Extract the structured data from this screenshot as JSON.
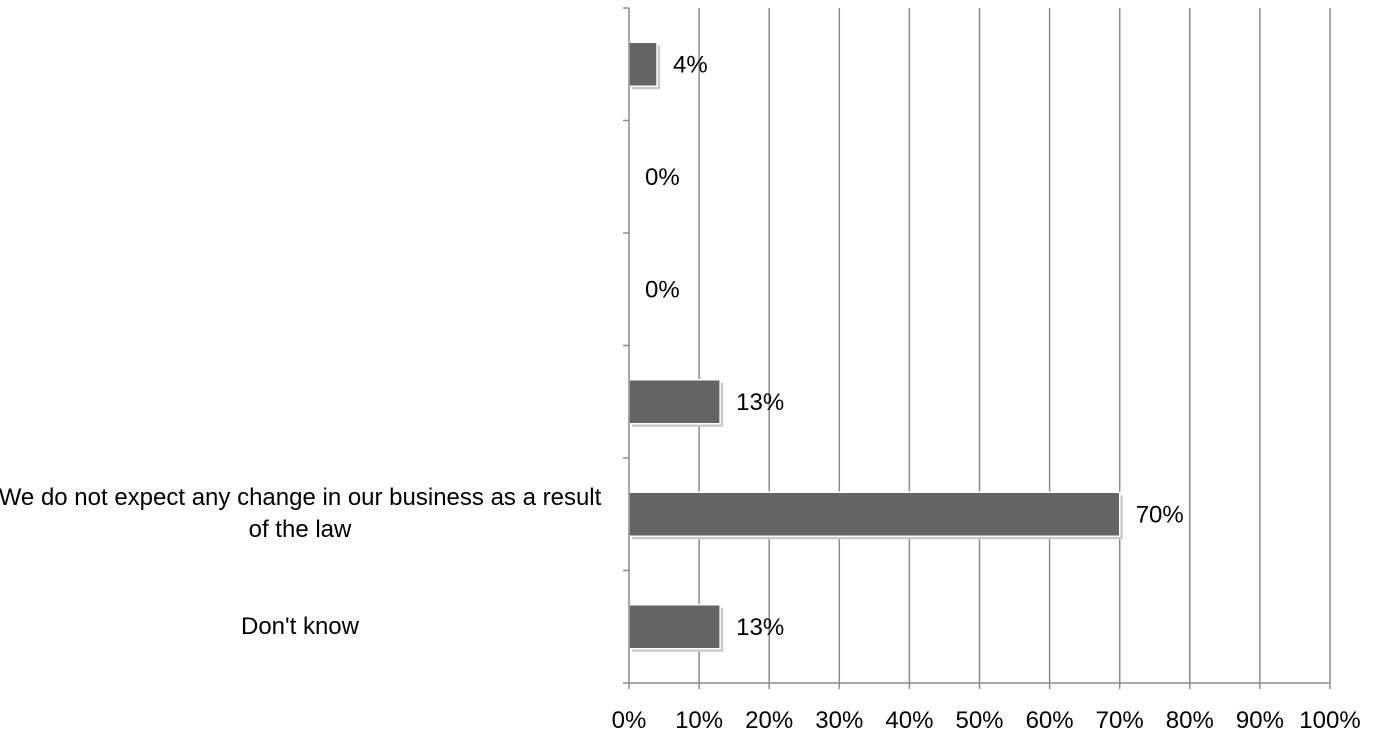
{
  "chart_data": {
    "type": "bar",
    "orientation": "horizontal",
    "title": "",
    "xlabel": "",
    "ylabel": "",
    "xlim": [
      0,
      100
    ],
    "x_ticks": [
      "0%",
      "10%",
      "20%",
      "30%",
      "40%",
      "50%",
      "60%",
      "70%",
      "80%",
      "90%",
      "100%"
    ],
    "grid": "vertical",
    "bar_color": "#646464",
    "categories": [
      "",
      "",
      "",
      "",
      "We do not expect any change in our business as a result of the law",
      "Don't know"
    ],
    "values": [
      4,
      0,
      0,
      13,
      70,
      13
    ],
    "value_labels": [
      "4%",
      "0%",
      "0%",
      "13%",
      "70%",
      "13%"
    ]
  }
}
